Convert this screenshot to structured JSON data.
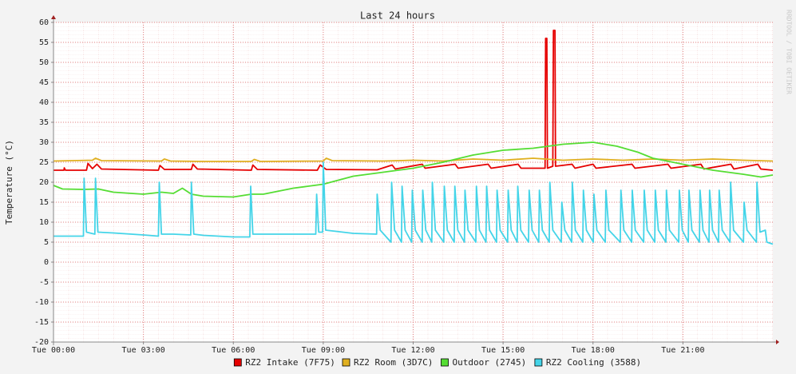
{
  "chart_data": {
    "type": "line",
    "title": "Last 24 hours",
    "y_label": "Temperature (°C)",
    "watermark": "RRDTOOL / TOBI OETIKER",
    "xlim": [
      0,
      24
    ],
    "xticks": [
      {
        "value": 0,
        "label": "Tue 00:00"
      },
      {
        "value": 3,
        "label": "Tue 03:00"
      },
      {
        "value": 6,
        "label": "Tue 06:00"
      },
      {
        "value": 9,
        "label": "Tue 09:00"
      },
      {
        "value": 12,
        "label": "Tue 12:00"
      },
      {
        "value": 15,
        "label": "Tue 15:00"
      },
      {
        "value": 18,
        "label": "Tue 18:00"
      },
      {
        "value": 21,
        "label": "Tue 21:00"
      }
    ],
    "ylim": [
      -20,
      60
    ],
    "yticks": [
      -20,
      -15,
      -10,
      -5,
      0,
      5,
      10,
      15,
      20,
      25,
      30,
      35,
      40,
      45,
      50,
      55,
      60
    ],
    "grid": true,
    "legend": "bottom",
    "series": [
      {
        "name": "RZ2 Intake (7F75)",
        "color": "#e60000",
        "x": [
          0,
          0.35,
          0.36,
          0.4,
          1.1,
          1.15,
          1.3,
          1.45,
          1.6,
          3.5,
          3.55,
          3.7,
          4.6,
          4.65,
          4.8,
          6.6,
          6.65,
          6.8,
          8.8,
          8.9,
          9.1,
          10.8,
          11.3,
          11.4,
          12.3,
          12.4,
          13.4,
          13.5,
          14.5,
          14.6,
          15.5,
          15.6,
          16.4,
          16.42,
          16.46,
          16.48,
          16.66,
          16.68,
          16.73,
          16.75,
          17.3,
          17.4,
          18,
          18.1,
          19.3,
          19.4,
          20.5,
          20.6,
          21.6,
          21.7,
          22.6,
          22.7,
          23.5,
          23.6,
          24
        ],
        "values": [
          23,
          23,
          23.6,
          23,
          23,
          24.7,
          23.4,
          24.5,
          23.3,
          23,
          24.2,
          23.2,
          23.2,
          24.5,
          23.3,
          23,
          24.3,
          23.2,
          23,
          24.3,
          23.2,
          23.1,
          24.3,
          23.3,
          24.5,
          23.5,
          24.5,
          23.5,
          24.5,
          23.5,
          24.5,
          23.5,
          23.5,
          56,
          56,
          23.5,
          24,
          58,
          58,
          24,
          24.5,
          23.5,
          24.5,
          23.5,
          24.5,
          23.5,
          24.5,
          23.5,
          24.5,
          23.3,
          24.5,
          23.3,
          24.5,
          23.3,
          23
        ]
      },
      {
        "name": "RZ2 Room (3D7C)",
        "color": "#e0b020",
        "x": [
          0,
          1.3,
          1.4,
          1.6,
          3.6,
          3.7,
          3.9,
          5,
          6.6,
          6.7,
          6.9,
          9,
          9.1,
          9.3,
          11,
          12,
          13,
          14,
          15,
          16,
          17,
          18,
          19,
          20,
          21,
          22,
          23,
          24
        ],
        "values": [
          25.3,
          25.5,
          26,
          25.4,
          25.3,
          25.8,
          25.3,
          25.2,
          25.2,
          25.7,
          25.2,
          25.3,
          26,
          25.4,
          25.3,
          25.5,
          25.3,
          25.8,
          25.5,
          26,
          25.5,
          25.8,
          25.5,
          25.8,
          25.5,
          25.8,
          25.5,
          25.3
        ]
      },
      {
        "name": "Outdoor (2745)",
        "color": "#55dd33",
        "x": [
          0,
          0.3,
          1,
          1.5,
          2,
          3,
          3.6,
          4,
          4.3,
          4.6,
          5,
          6,
          6.6,
          7,
          8,
          8.5,
          9,
          10,
          11,
          12,
          13,
          14,
          15,
          16,
          17,
          18,
          18.8,
          19.5,
          20,
          21,
          22,
          23,
          23.6,
          24
        ],
        "values": [
          19.2,
          18.3,
          18.2,
          18.3,
          17.5,
          17,
          17.5,
          17.2,
          18.5,
          17,
          16.5,
          16.3,
          17,
          17,
          18.5,
          19,
          19.5,
          21.5,
          22.5,
          23.5,
          25,
          26.8,
          28,
          28.5,
          29.5,
          30,
          29,
          27.5,
          26,
          24.5,
          23,
          22,
          21.3,
          21.8
        ]
      },
      {
        "name": "RZ2 Cooling (3588)",
        "color": "#44d4e8",
        "x": [
          0,
          1,
          1.02,
          1.1,
          1.38,
          1.4,
          1.48,
          2,
          3,
          3.5,
          3.53,
          3.6,
          4,
          4.58,
          4.6,
          4.68,
          5,
          6,
          6.55,
          6.58,
          6.65,
          7,
          8,
          8.75,
          8.78,
          8.85,
          8.98,
          9,
          9.08,
          10,
          10.78,
          10.8,
          10.9,
          11.26,
          11.28,
          11.38,
          11.61,
          11.63,
          11.73,
          11.95,
          11.97,
          12.07,
          12.3,
          12.32,
          12.42,
          12.62,
          12.64,
          12.74,
          13.02,
          13.04,
          13.14,
          13.37,
          13.39,
          13.49,
          13.71,
          13.73,
          13.83,
          14.09,
          14.11,
          14.21,
          14.43,
          14.45,
          14.55,
          14.78,
          14.8,
          14.9,
          15.15,
          15.17,
          15.27,
          15.47,
          15.49,
          15.59,
          15.85,
          15.87,
          15.97,
          16.19,
          16.21,
          16.31,
          16.54,
          16.56,
          16.66,
          16.94,
          16.96,
          17.06,
          17.29,
          17.31,
          17.41,
          17.66,
          17.68,
          17.78,
          18.01,
          18.03,
          18.13,
          18.41,
          18.43,
          18.53,
          18.91,
          18.93,
          19.03,
          19.29,
          19.31,
          19.41,
          19.69,
          19.71,
          19.81,
          20.06,
          20.08,
          20.18,
          20.43,
          20.45,
          20.55,
          20.86,
          20.88,
          20.98,
          21.18,
          21.2,
          21.3,
          21.55,
          21.57,
          21.67,
          21.87,
          21.89,
          21.99,
          22.19,
          22.21,
          22.31,
          22.57,
          22.59,
          22.69,
          23.02,
          23.04,
          23.14,
          23.45,
          23.47,
          23.57,
          23.75,
          23.8,
          24
        ],
        "values": [
          6.5,
          6.5,
          21,
          7.5,
          7,
          21,
          7.5,
          7.3,
          6.8,
          6.5,
          20,
          7,
          7,
          6.8,
          20,
          7,
          6.7,
          6.3,
          6.3,
          19,
          7,
          7,
          7,
          7,
          17,
          7.5,
          7.5,
          25,
          8,
          7.2,
          7,
          17,
          8,
          5,
          20,
          8,
          5,
          19,
          8,
          5,
          18,
          8,
          5,
          18,
          8,
          5,
          20,
          8,
          5,
          19,
          8,
          5,
          19,
          8,
          5,
          18,
          8,
          5,
          19,
          8,
          5,
          19,
          8,
          5,
          18,
          8,
          5,
          18,
          8,
          5,
          19,
          8,
          5,
          18,
          8,
          5,
          18,
          8,
          5,
          20,
          8,
          5,
          15,
          8,
          5,
          20,
          8,
          5,
          18,
          8,
          5,
          17,
          8,
          5,
          18,
          8,
          5,
          18,
          8,
          5,
          18,
          8,
          5,
          18,
          8,
          5,
          18,
          8,
          5,
          18,
          8,
          5,
          18,
          8,
          5,
          18,
          8,
          5,
          18,
          8,
          5,
          18,
          8,
          5,
          18,
          8,
          5,
          20,
          8,
          5,
          15,
          8,
          5,
          20,
          7.5,
          8,
          5,
          4.5
        ]
      }
    ]
  }
}
